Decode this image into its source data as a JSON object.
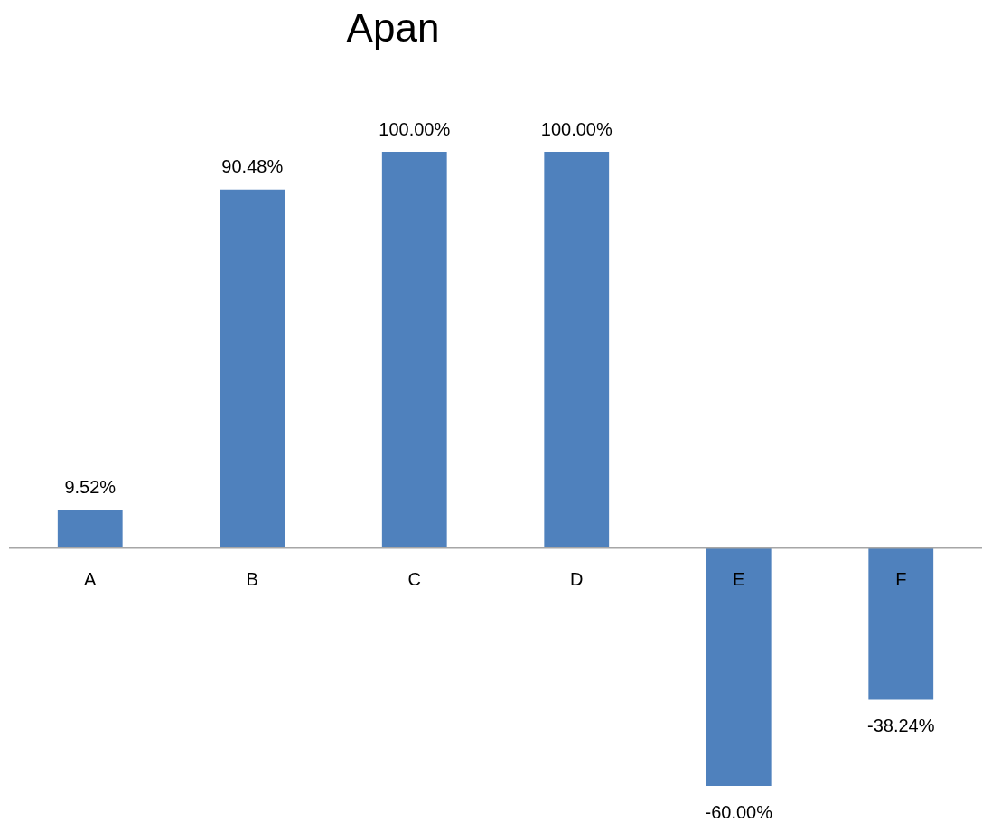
{
  "chart_data": {
    "type": "bar",
    "title": "Apan",
    "categories": [
      "A",
      "B",
      "C",
      "D",
      "E",
      "F"
    ],
    "values": [
      9.52,
      90.48,
      100,
      100,
      -60,
      -38.24
    ],
    "value_labels": [
      "9.52%",
      "90.48%",
      "100.00%",
      "100.00%",
      "-60.00%",
      "-38.24%"
    ],
    "color": "#4f81bd"
  }
}
